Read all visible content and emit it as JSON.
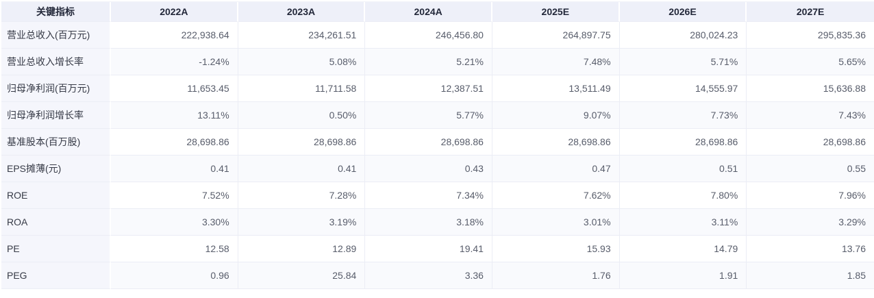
{
  "colors": {
    "header_bg": "#eef0f9",
    "label_col_bg": "#f5f6fc",
    "stripe_bg": "#f9fafd",
    "border": "#ebedf5",
    "header_text": "#23283a",
    "label_text": "#363a46",
    "value_dark": "#575c6a",
    "value_blue": "#3b7ce0",
    "value_red": "#fa4a28",
    "value_green": "#27a46d"
  },
  "table": {
    "header": [
      "关键指标",
      "2022A",
      "2023A",
      "2024A",
      "2025E",
      "2026E",
      "2027E"
    ],
    "rows": [
      {
        "label": "营业总收入(百万元)",
        "values": [
          "222,938.64",
          "234,261.51",
          "246,456.80",
          "264,897.75",
          "280,024.23",
          "295,835.36"
        ],
        "colors": [
          "dark",
          "dark",
          "dark",
          "blue",
          "blue",
          "blue"
        ]
      },
      {
        "label": "营业总收入增长率",
        "values": [
          "-1.24%",
          "5.08%",
          "5.21%",
          "7.48%",
          "5.71%",
          "5.65%"
        ],
        "colors": [
          "green",
          "red",
          "red",
          "red",
          "red",
          "red"
        ]
      },
      {
        "label": "归母净利润(百万元)",
        "values": [
          "11,653.45",
          "11,711.58",
          "12,387.51",
          "13,511.49",
          "14,555.97",
          "15,636.88"
        ],
        "colors": [
          "dark",
          "dark",
          "dark",
          "blue",
          "blue",
          "blue"
        ]
      },
      {
        "label": "归母净利润增长率",
        "values": [
          "13.11%",
          "0.50%",
          "5.77%",
          "9.07%",
          "7.73%",
          "7.43%"
        ],
        "colors": [
          "red",
          "red",
          "red",
          "red",
          "red",
          "red"
        ]
      },
      {
        "label": "基准股本(百万股)",
        "values": [
          "28,698.86",
          "28,698.86",
          "28,698.86",
          "28,698.86",
          "28,698.86",
          "28,698.86"
        ],
        "colors": [
          "dark",
          "dark",
          "dark",
          "dark",
          "dark",
          "dark"
        ]
      },
      {
        "label": "EPS摊薄(元)",
        "values": [
          "0.41",
          "0.41",
          "0.43",
          "0.47",
          "0.51",
          "0.55"
        ],
        "colors": [
          "dark",
          "dark",
          "dark",
          "blue",
          "blue",
          "blue"
        ]
      },
      {
        "label": "ROE",
        "values": [
          "7.52%",
          "7.28%",
          "7.34%",
          "7.62%",
          "7.80%",
          "7.96%"
        ],
        "colors": [
          "dark",
          "dark",
          "dark",
          "dark",
          "dark",
          "dark"
        ]
      },
      {
        "label": "ROA",
        "values": [
          "3.30%",
          "3.19%",
          "3.18%",
          "3.01%",
          "3.11%",
          "3.29%"
        ],
        "colors": [
          "dark",
          "dark",
          "dark",
          "dark",
          "dark",
          "dark"
        ]
      },
      {
        "label": "PE",
        "values": [
          "12.58",
          "12.89",
          "19.41",
          "15.93",
          "14.79",
          "13.76"
        ],
        "colors": [
          "dark",
          "dark",
          "dark",
          "dark",
          "dark",
          "dark"
        ]
      },
      {
        "label": "PEG",
        "values": [
          "0.96",
          "25.84",
          "3.36",
          "1.76",
          "1.91",
          "1.85"
        ],
        "colors": [
          "dark",
          "dark",
          "dark",
          "dark",
          "dark",
          "dark"
        ]
      }
    ]
  },
  "chart_data": {
    "type": "table",
    "title": "关键指标",
    "columns": [
      "关键指标",
      "2022A",
      "2023A",
      "2024A",
      "2025E",
      "2026E",
      "2027E"
    ],
    "rows": [
      {
        "metric": "营业总收入(百万元)",
        "values": [
          222938.64,
          234261.51,
          246456.8,
          264897.75,
          280024.23,
          295835.36
        ]
      },
      {
        "metric": "营业总收入增长率(%)",
        "values": [
          -1.24,
          5.08,
          5.21,
          7.48,
          5.71,
          5.65
        ]
      },
      {
        "metric": "归母净利润(百万元)",
        "values": [
          11653.45,
          11711.58,
          12387.51,
          13511.49,
          14555.97,
          15636.88
        ]
      },
      {
        "metric": "归母净利润增长率(%)",
        "values": [
          13.11,
          0.5,
          5.77,
          9.07,
          7.73,
          7.43
        ]
      },
      {
        "metric": "基准股本(百万股)",
        "values": [
          28698.86,
          28698.86,
          28698.86,
          28698.86,
          28698.86,
          28698.86
        ]
      },
      {
        "metric": "EPS摊薄(元)",
        "values": [
          0.41,
          0.41,
          0.43,
          0.47,
          0.51,
          0.55
        ]
      },
      {
        "metric": "ROE(%)",
        "values": [
          7.52,
          7.28,
          7.34,
          7.62,
          7.8,
          7.96
        ]
      },
      {
        "metric": "ROA(%)",
        "values": [
          3.3,
          3.19,
          3.18,
          3.01,
          3.11,
          3.29
        ]
      },
      {
        "metric": "PE",
        "values": [
          12.58,
          12.89,
          19.41,
          15.93,
          14.79,
          13.76
        ]
      },
      {
        "metric": "PEG",
        "values": [
          0.96,
          25.84,
          3.36,
          1.76,
          1.91,
          1.85
        ]
      }
    ]
  }
}
